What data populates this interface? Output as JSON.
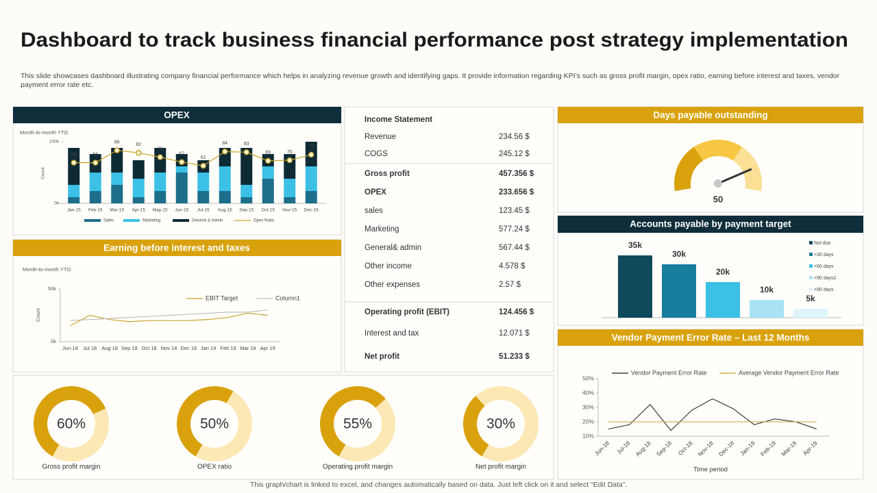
{
  "title": "Dashboard to track business financial performance post strategy implementation",
  "description": "This slide showcases dashboard illustrating company financial performance which helps in analyzing revenue growth and identifying gaps. It provide information regarding KPI’s such as gross profit margin, opex ratio, earning before interest and taxes, vendor payment error rate etc.",
  "footer": "This graph/chart is linked to excel, and changes automatically based on data. Just left click on it and select “Edit Data”.",
  "income_statement": {
    "title": "Income Statement",
    "rows": [
      [
        "Revenue",
        "234.56 $"
      ],
      [
        "COGS",
        "245.12 $"
      ],
      [
        "Gross profit",
        "457.356 $"
      ],
      [
        "OPEX",
        "233.656 $"
      ],
      [
        "sales",
        "123.45 $"
      ],
      [
        "Marketing",
        "577.24 $"
      ],
      [
        "General& admin",
        "567.44 $"
      ],
      [
        "Other income",
        "4.578 $"
      ],
      [
        "Other expenses",
        "2.57 $"
      ],
      [
        "Operating profit (EBIT)",
        "124.456 $"
      ],
      [
        "Interest and tax",
        "12.071 $"
      ],
      [
        "Net profit",
        "51.233 $"
      ]
    ]
  },
  "chart_data": [
    {
      "type": "bar",
      "stacked": true,
      "title": "OPEX",
      "subtitle": "Month-to-month YTO",
      "y_label": "Count",
      "categories": [
        "Jan-15",
        "Feb-15",
        "Mar-15",
        "Apr-15",
        "May-15",
        "Jun-15",
        "Jul-15",
        "Aug-15",
        "Sep-15",
        "Oct-15",
        "Nov-15",
        "Dec-15"
      ],
      "series": [
        {
          "name": "Sales",
          "color": "#1d6e8a",
          "values": [
            10000,
            20000,
            30000,
            10000,
            20000,
            50000,
            20000,
            20000,
            10000,
            40000,
            10000,
            20000
          ]
        },
        {
          "name": "Marketing",
          "color": "#3cc0e6",
          "values": [
            20000,
            30000,
            20000,
            30000,
            30000,
            10000,
            30000,
            40000,
            20000,
            20000,
            30000,
            40000
          ]
        },
        {
          "name": "General & Admin",
          "color": "#0e2a35",
          "values": [
            60000,
            30000,
            40000,
            30000,
            40000,
            20000,
            20000,
            30000,
            60000,
            20000,
            40000,
            40000
          ]
        },
        {
          "name": "Opex Ratio",
          "color": "#c9a227",
          "axis": "y2",
          "values": [
            66,
            66,
            86,
            82,
            75,
            67,
            61,
            84,
            83,
            69,
            70,
            79
          ]
        }
      ],
      "ylim": [
        0,
        100000
      ],
      "yticks": [
        {
          "value": 0,
          "label": "0k"
        },
        {
          "value": 100000,
          "label": "100k"
        }
      ],
      "y2lim": [
        0,
        100
      ]
    },
    {
      "type": "line",
      "title": "Earning before interest and taxes",
      "subtitle": "Month-to-month YTO",
      "y_label": "Count",
      "categories": [
        "Jun-18",
        "Jul 18",
        "Aug 18",
        "Sep 18",
        "Oct 18",
        "Nov 18",
        "Dec 18",
        "Jan 19",
        "Feb 19",
        "Mar 19",
        "Apr 19"
      ],
      "series": [
        {
          "name": "EBIT Target",
          "color": "#c9a227",
          "values": [
            15000,
            25000,
            21000,
            19000,
            20000,
            20000,
            20000,
            21000,
            23000,
            27000,
            25000
          ]
        },
        {
          "name": "Column1",
          "color": "#bdbdbd",
          "values": [
            20000,
            21000,
            22000,
            23000,
            24000,
            25000,
            26000,
            27000,
            28000,
            28000,
            30000
          ]
        }
      ],
      "ylim": [
        0,
        50000
      ],
      "yticks": [
        {
          "value": 0,
          "label": "0k"
        },
        {
          "value": 50000,
          "label": "50k"
        }
      ]
    },
    {
      "type": "gauge",
      "title": "Days payable outstanding",
      "values": [
        50
      ],
      "ylim": [
        0,
        60
      ],
      "colors": [
        "#d9a20c",
        "#f7c744",
        "#fbdf94"
      ]
    },
    {
      "type": "bar",
      "title": "Accounts payable by payment target",
      "categories": [
        "Not due",
        "<30 days",
        "<60 days",
        "<90 days2",
        "<90 days"
      ],
      "values": [
        35000,
        30000,
        20000,
        10000,
        5000
      ],
      "value_labels": [
        "35k",
        "30k",
        "20k",
        "10k",
        "5k"
      ],
      "colors": [
        "#0e4a5c",
        "#177e9e",
        "#3cc0e6",
        "#a8e2f3",
        "#dff3fa"
      ],
      "ylim": [
        0,
        40000
      ]
    },
    {
      "type": "line",
      "title": "Vendor Payment Error Rate – Last 12 Months",
      "x_label": "Time period",
      "categories": [
        "Jun-18",
        "Jul-18",
        "Aug-18",
        "Sep-18",
        "Oct-18",
        "Nov-18",
        "Dec-18",
        "Jan-19",
        "Feb-19",
        "Mar-19",
        "Apr-19"
      ],
      "series": [
        {
          "name": "Vendor Payment Error Rate",
          "color": "#1a1a1a",
          "values": [
            15,
            18,
            32,
            14,
            28,
            36,
            29,
            18,
            22,
            20,
            15
          ]
        },
        {
          "name": "Average Vendor Payment Error Rate",
          "color": "#c9a227",
          "values": [
            20,
            20,
            20,
            20,
            20,
            20,
            20,
            20,
            20,
            20,
            20
          ]
        }
      ],
      "ylim": [
        10,
        50
      ],
      "yticks": [
        {
          "value": 10,
          "label": "10%"
        },
        {
          "value": 20,
          "label": "20%"
        },
        {
          "value": 30,
          "label": "30%"
        },
        {
          "value": 40,
          "label": "40%"
        },
        {
          "value": 50,
          "label": "50%"
        }
      ]
    },
    {
      "type": "donut",
      "title": "Gross profit margin",
      "values": [
        60
      ],
      "value_labels": [
        "60%"
      ],
      "colors": [
        "#d9a20c",
        "#fbe8b5"
      ]
    },
    {
      "type": "donut",
      "title": "OPEX ratio",
      "values": [
        50
      ],
      "value_labels": [
        "50%"
      ],
      "colors": [
        "#d9a20c",
        "#fbe8b5"
      ]
    },
    {
      "type": "donut",
      "title": "Operating profit margin",
      "values": [
        55
      ],
      "value_labels": [
        "55%"
      ],
      "colors": [
        "#d9a20c",
        "#fbe8b5"
      ]
    },
    {
      "type": "donut",
      "title": "Net profit margin",
      "values": [
        30
      ],
      "value_labels": [
        "30%"
      ],
      "colors": [
        "#d9a20c",
        "#fbe8b5"
      ]
    }
  ]
}
